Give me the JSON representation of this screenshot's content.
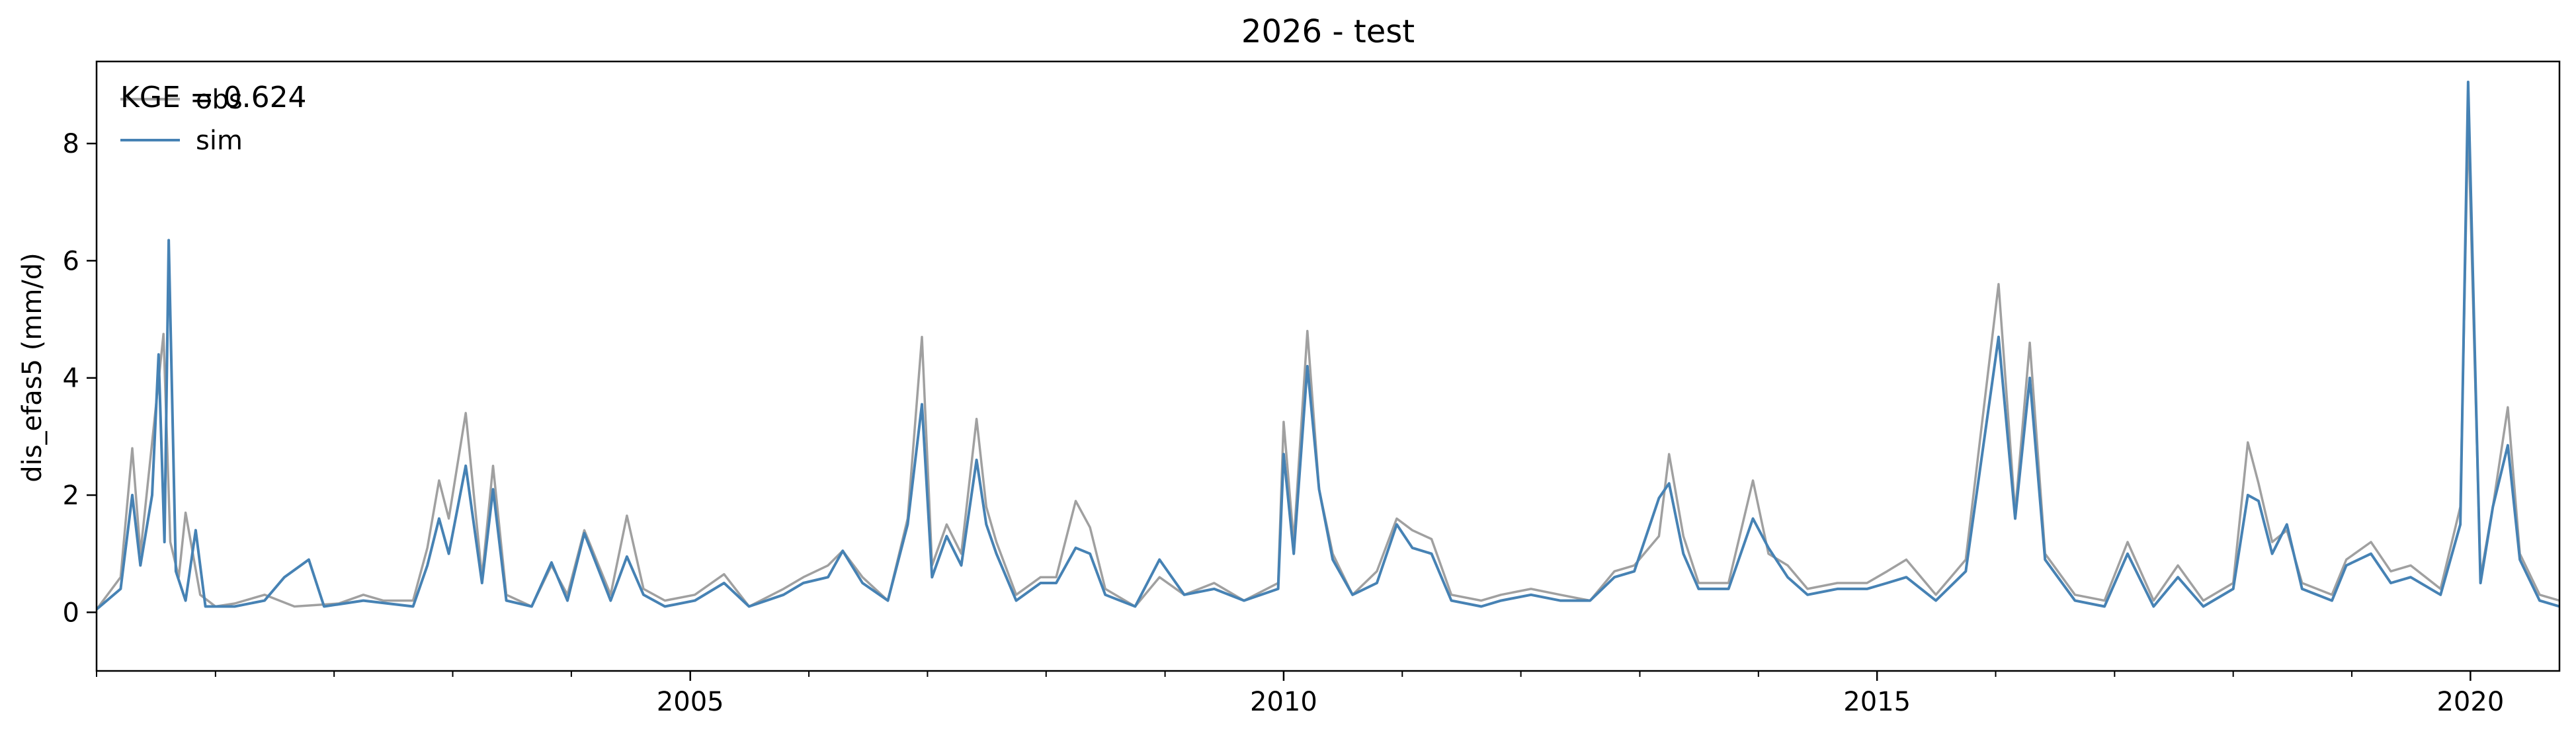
{
  "chart_data": {
    "type": "line",
    "title": "2026 - test",
    "xlabel": "",
    "ylabel": "dis_efas5 (mm/d)",
    "annotation": "KGE = 0.624",
    "xlim": [
      "2000-01-01",
      "2020-10-01"
    ],
    "ylim": [
      -1.0,
      9.4
    ],
    "x_ticks": [
      "2005",
      "2010",
      "2015",
      "2020"
    ],
    "y_ticks": [
      0,
      2,
      4,
      6,
      8
    ],
    "legend": {
      "placement": "top-left",
      "entries": [
        "obs",
        "sim"
      ]
    },
    "grid": false,
    "series": [
      {
        "name": "obs",
        "color": "#a0a0a0",
        "values": [
          [
            "2000-01-01",
            0.05
          ],
          [
            "2000-03-15",
            0.6
          ],
          [
            "2000-04-20",
            2.8
          ],
          [
            "2000-05-15",
            1.0
          ],
          [
            "2000-06-20",
            2.9
          ],
          [
            "2000-07-25",
            4.75
          ],
          [
            "2000-08-15",
            1.2
          ],
          [
            "2000-09-10",
            0.6
          ],
          [
            "2000-10-01",
            1.7
          ],
          [
            "2000-11-15",
            0.3
          ],
          [
            "2001-01-01",
            0.1
          ],
          [
            "2001-03-01",
            0.15
          ],
          [
            "2001-06-01",
            0.3
          ],
          [
            "2001-09-01",
            0.1
          ],
          [
            "2002-01-15",
            0.15
          ],
          [
            "2002-04-01",
            0.3
          ],
          [
            "2002-06-01",
            0.2
          ],
          [
            "2002-09-01",
            0.2
          ],
          [
            "2002-10-15",
            1.1
          ],
          [
            "2002-11-20",
            2.25
          ],
          [
            "2002-12-20",
            1.6
          ],
          [
            "2003-02-10",
            3.4
          ],
          [
            "2003-04-01",
            0.6
          ],
          [
            "2003-05-05",
            2.5
          ],
          [
            "2003-06-15",
            0.3
          ],
          [
            "2003-09-01",
            0.1
          ],
          [
            "2003-11-01",
            0.8
          ],
          [
            "2003-12-20",
            0.3
          ],
          [
            "2004-02-10",
            1.4
          ],
          [
            "2004-05-01",
            0.3
          ],
          [
            "2004-06-20",
            1.65
          ],
          [
            "2004-08-10",
            0.4
          ],
          [
            "2004-10-15",
            0.2
          ],
          [
            "2005-01-15",
            0.3
          ],
          [
            "2005-04-15",
            0.65
          ],
          [
            "2005-07-01",
            0.1
          ],
          [
            "2005-10-15",
            0.4
          ],
          [
            "2005-12-15",
            0.6
          ],
          [
            "2006-03-01",
            0.8
          ],
          [
            "2006-04-15",
            1.05
          ],
          [
            "2006-06-15",
            0.6
          ],
          [
            "2006-09-01",
            0.2
          ],
          [
            "2006-11-01",
            1.6
          ],
          [
            "2006-12-15",
            4.7
          ],
          [
            "2007-01-15",
            0.8
          ],
          [
            "2007-03-01",
            1.5
          ],
          [
            "2007-04-15",
            1.0
          ],
          [
            "2007-06-01",
            3.3
          ],
          [
            "2007-07-01",
            1.8
          ],
          [
            "2007-08-01",
            1.2
          ],
          [
            "2007-10-01",
            0.3
          ],
          [
            "2007-12-15",
            0.6
          ],
          [
            "2008-02-01",
            0.6
          ],
          [
            "2008-04-01",
            1.9
          ],
          [
            "2008-05-15",
            1.45
          ],
          [
            "2008-07-01",
            0.4
          ],
          [
            "2008-10-01",
            0.1
          ],
          [
            "2008-12-15",
            0.6
          ],
          [
            "2009-03-01",
            0.3
          ],
          [
            "2009-06-01",
            0.5
          ],
          [
            "2009-09-01",
            0.2
          ],
          [
            "2009-12-15",
            0.5
          ],
          [
            "2010-01-01",
            3.25
          ],
          [
            "2010-02-01",
            1.2
          ],
          [
            "2010-03-15",
            4.8
          ],
          [
            "2010-04-20",
            2.1
          ],
          [
            "2010-06-01",
            1.0
          ],
          [
            "2010-08-01",
            0.3
          ],
          [
            "2010-10-15",
            0.7
          ],
          [
            "2010-12-15",
            1.6
          ],
          [
            "2011-02-01",
            1.4
          ],
          [
            "2011-04-01",
            1.25
          ],
          [
            "2011-06-01",
            0.3
          ],
          [
            "2011-09-01",
            0.2
          ],
          [
            "2011-11-01",
            0.3
          ],
          [
            "2012-02-01",
            0.4
          ],
          [
            "2012-05-01",
            0.3
          ],
          [
            "2012-08-01",
            0.2
          ],
          [
            "2012-10-15",
            0.7
          ],
          [
            "2012-12-15",
            0.8
          ],
          [
            "2013-03-01",
            1.3
          ],
          [
            "2013-04-01",
            2.7
          ],
          [
            "2013-05-15",
            1.3
          ],
          [
            "2013-07-01",
            0.5
          ],
          [
            "2013-10-01",
            0.5
          ],
          [
            "2013-12-15",
            2.25
          ],
          [
            "2014-02-01",
            1.0
          ],
          [
            "2014-04-01",
            0.8
          ],
          [
            "2014-06-01",
            0.4
          ],
          [
            "2014-09-01",
            0.5
          ],
          [
            "2014-12-01",
            0.5
          ],
          [
            "2015-02-01",
            0.7
          ],
          [
            "2015-04-01",
            0.9
          ],
          [
            "2015-07-01",
            0.3
          ],
          [
            "2015-10-01",
            0.9
          ],
          [
            "2016-01-10",
            5.6
          ],
          [
            "2016-03-01",
            1.7
          ],
          [
            "2016-04-15",
            4.6
          ],
          [
            "2016-06-01",
            1.0
          ],
          [
            "2016-09-01",
            0.3
          ],
          [
            "2016-12-01",
            0.2
          ],
          [
            "2017-02-10",
            1.2
          ],
          [
            "2017-05-01",
            0.2
          ],
          [
            "2017-07-15",
            0.8
          ],
          [
            "2017-10-01",
            0.2
          ],
          [
            "2018-01-01",
            0.5
          ],
          [
            "2018-02-15",
            2.9
          ],
          [
            "2018-03-20",
            2.2
          ],
          [
            "2018-05-01",
            1.2
          ],
          [
            "2018-06-15",
            1.4
          ],
          [
            "2018-08-01",
            0.5
          ],
          [
            "2018-11-01",
            0.3
          ],
          [
            "2018-12-15",
            0.9
          ],
          [
            "2019-03-01",
            1.2
          ],
          [
            "2019-05-01",
            0.7
          ],
          [
            "2019-07-01",
            0.8
          ],
          [
            "2019-10-01",
            0.4
          ],
          [
            "2019-12-01",
            1.8
          ],
          [
            "2019-12-25",
            8.4
          ],
          [
            "2020-02-01",
            0.6
          ],
          [
            "2020-03-10",
            1.8
          ],
          [
            "2020-04-25",
            3.5
          ],
          [
            "2020-06-01",
            1.0
          ],
          [
            "2020-08-01",
            0.3
          ],
          [
            "2020-10-01",
            0.2
          ]
        ]
      },
      {
        "name": "sim",
        "color": "#4682b4",
        "values": [
          [
            "2000-01-01",
            0.05
          ],
          [
            "2000-03-15",
            0.4
          ],
          [
            "2000-04-20",
            2.0
          ],
          [
            "2000-05-15",
            0.8
          ],
          [
            "2000-06-20",
            2.0
          ],
          [
            "2000-07-10",
            4.4
          ],
          [
            "2000-07-28",
            1.2
          ],
          [
            "2000-08-10",
            6.35
          ],
          [
            "2000-09-01",
            0.7
          ],
          [
            "2000-10-01",
            0.2
          ],
          [
            "2000-11-01",
            1.4
          ],
          [
            "2000-12-01",
            0.1
          ],
          [
            "2001-03-01",
            0.1
          ],
          [
            "2001-06-01",
            0.2
          ],
          [
            "2001-08-01",
            0.6
          ],
          [
            "2001-10-15",
            0.9
          ],
          [
            "2001-12-01",
            0.1
          ],
          [
            "2002-04-01",
            0.2
          ],
          [
            "2002-09-01",
            0.1
          ],
          [
            "2002-10-15",
            0.8
          ],
          [
            "2002-11-20",
            1.6
          ],
          [
            "2002-12-20",
            1.0
          ],
          [
            "2003-02-10",
            2.5
          ],
          [
            "2003-04-01",
            0.5
          ],
          [
            "2003-05-05",
            2.1
          ],
          [
            "2003-06-15",
            0.2
          ],
          [
            "2003-09-01",
            0.1
          ],
          [
            "2003-11-01",
            0.85
          ],
          [
            "2003-12-20",
            0.2
          ],
          [
            "2004-02-10",
            1.35
          ],
          [
            "2004-05-01",
            0.2
          ],
          [
            "2004-06-20",
            0.95
          ],
          [
            "2004-08-10",
            0.3
          ],
          [
            "2004-10-15",
            0.1
          ],
          [
            "2005-01-15",
            0.2
          ],
          [
            "2005-04-15",
            0.5
          ],
          [
            "2005-07-01",
            0.1
          ],
          [
            "2005-10-15",
            0.3
          ],
          [
            "2005-12-15",
            0.5
          ],
          [
            "2006-03-01",
            0.6
          ],
          [
            "2006-04-15",
            1.05
          ],
          [
            "2006-06-15",
            0.5
          ],
          [
            "2006-09-01",
            0.2
          ],
          [
            "2006-11-01",
            1.5
          ],
          [
            "2006-12-15",
            3.55
          ],
          [
            "2007-01-15",
            0.6
          ],
          [
            "2007-03-01",
            1.3
          ],
          [
            "2007-04-15",
            0.8
          ],
          [
            "2007-06-01",
            2.6
          ],
          [
            "2007-07-01",
            1.5
          ],
          [
            "2007-08-01",
            1.0
          ],
          [
            "2007-10-01",
            0.2
          ],
          [
            "2007-12-15",
            0.5
          ],
          [
            "2008-02-01",
            0.5
          ],
          [
            "2008-04-01",
            1.1
          ],
          [
            "2008-05-15",
            1.0
          ],
          [
            "2008-07-01",
            0.3
          ],
          [
            "2008-10-01",
            0.1
          ],
          [
            "2008-12-15",
            0.9
          ],
          [
            "2009-03-01",
            0.3
          ],
          [
            "2009-06-01",
            0.4
          ],
          [
            "2009-09-01",
            0.2
          ],
          [
            "2009-12-15",
            0.4
          ],
          [
            "2010-01-01",
            2.7
          ],
          [
            "2010-02-01",
            1.0
          ],
          [
            "2010-03-15",
            4.2
          ],
          [
            "2010-04-20",
            2.1
          ],
          [
            "2010-06-01",
            0.9
          ],
          [
            "2010-08-01",
            0.3
          ],
          [
            "2010-10-15",
            0.5
          ],
          [
            "2010-12-15",
            1.5
          ],
          [
            "2011-02-01",
            1.1
          ],
          [
            "2011-04-01",
            1.0
          ],
          [
            "2011-06-01",
            0.2
          ],
          [
            "2011-09-01",
            0.1
          ],
          [
            "2011-11-01",
            0.2
          ],
          [
            "2012-02-01",
            0.3
          ],
          [
            "2012-05-01",
            0.2
          ],
          [
            "2012-08-01",
            0.2
          ],
          [
            "2012-10-15",
            0.6
          ],
          [
            "2012-12-15",
            0.7
          ],
          [
            "2013-03-01",
            1.95
          ],
          [
            "2013-04-01",
            2.2
          ],
          [
            "2013-05-15",
            1.0
          ],
          [
            "2013-07-01",
            0.4
          ],
          [
            "2013-10-01",
            0.4
          ],
          [
            "2013-12-15",
            1.6
          ],
          [
            "2014-02-01",
            1.1
          ],
          [
            "2014-04-01",
            0.6
          ],
          [
            "2014-06-01",
            0.3
          ],
          [
            "2014-09-01",
            0.4
          ],
          [
            "2014-12-01",
            0.4
          ],
          [
            "2015-02-01",
            0.5
          ],
          [
            "2015-04-01",
            0.6
          ],
          [
            "2015-07-01",
            0.2
          ],
          [
            "2015-10-01",
            0.7
          ],
          [
            "2016-01-10",
            4.7
          ],
          [
            "2016-03-01",
            1.6
          ],
          [
            "2016-04-15",
            4.0
          ],
          [
            "2016-06-01",
            0.9
          ],
          [
            "2016-09-01",
            0.2
          ],
          [
            "2016-12-01",
            0.1
          ],
          [
            "2017-02-10",
            1.0
          ],
          [
            "2017-05-01",
            0.1
          ],
          [
            "2017-07-15",
            0.6
          ],
          [
            "2017-10-01",
            0.1
          ],
          [
            "2018-01-01",
            0.4
          ],
          [
            "2018-02-15",
            2.0
          ],
          [
            "2018-03-20",
            1.9
          ],
          [
            "2018-05-01",
            1.0
          ],
          [
            "2018-06-15",
            1.5
          ],
          [
            "2018-08-01",
            0.4
          ],
          [
            "2018-11-01",
            0.2
          ],
          [
            "2018-12-15",
            0.8
          ],
          [
            "2019-03-01",
            1.0
          ],
          [
            "2019-05-01",
            0.5
          ],
          [
            "2019-07-01",
            0.6
          ],
          [
            "2019-10-01",
            0.3
          ],
          [
            "2019-12-01",
            1.5
          ],
          [
            "2019-12-25",
            9.05
          ],
          [
            "2020-02-01",
            0.5
          ],
          [
            "2020-03-10",
            1.8
          ],
          [
            "2020-04-25",
            2.85
          ],
          [
            "2020-06-01",
            0.9
          ],
          [
            "2020-08-01",
            0.2
          ],
          [
            "2020-10-01",
            0.1
          ]
        ]
      }
    ]
  }
}
